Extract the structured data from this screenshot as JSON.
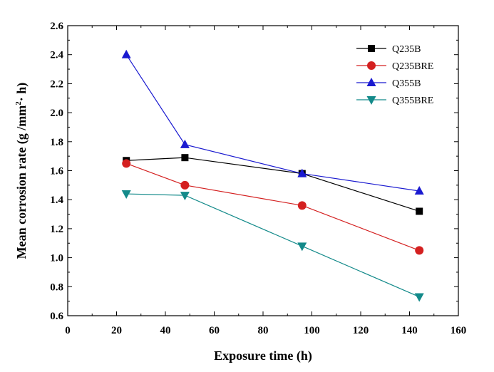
{
  "chart_data": {
    "type": "line",
    "title": "",
    "xlabel": "Exposure time (h)",
    "ylabel": "Mean corrosion rate (g /mm",
    "ylabel_sup": "2",
    "ylabel_tail": "· h)",
    "xlim": [
      0,
      160
    ],
    "ylim": [
      0.6,
      2.6
    ],
    "x_ticks": [
      0,
      20,
      40,
      60,
      80,
      100,
      120,
      140,
      160
    ],
    "y_ticks": [
      0.6,
      0.8,
      1.0,
      1.2,
      1.4,
      1.6,
      1.8,
      2.0,
      2.2,
      2.4,
      2.6
    ],
    "x_tick_labels": [
      "0",
      "20",
      "40",
      "60",
      "80",
      "100",
      "120",
      "140",
      "160"
    ],
    "y_tick_labels": [
      "0.6",
      "0.8",
      "1.0",
      "1.2",
      "1.4",
      "1.6",
      "1.8",
      "2.0",
      "2.2",
      "2.4",
      "2.6"
    ],
    "grid": false,
    "legend_position": "top-right",
    "x": [
      24,
      48,
      96,
      144
    ],
    "series": [
      {
        "name": "Q235B",
        "values": [
          1.67,
          1.69,
          1.58,
          1.32
        ],
        "color": "#000000",
        "marker": "square"
      },
      {
        "name": "Q235BRE",
        "values": [
          1.65,
          1.5,
          1.36,
          1.05
        ],
        "color": "#d42020",
        "marker": "circle"
      },
      {
        "name": "Q355B",
        "values": [
          2.4,
          1.78,
          1.58,
          1.46
        ],
        "color": "#1a1ad0",
        "marker": "triangle-up"
      },
      {
        "name": "Q355BRE",
        "values": [
          1.44,
          1.43,
          1.08,
          0.73
        ],
        "color": "#138a8a",
        "marker": "triangle-down"
      }
    ]
  }
}
